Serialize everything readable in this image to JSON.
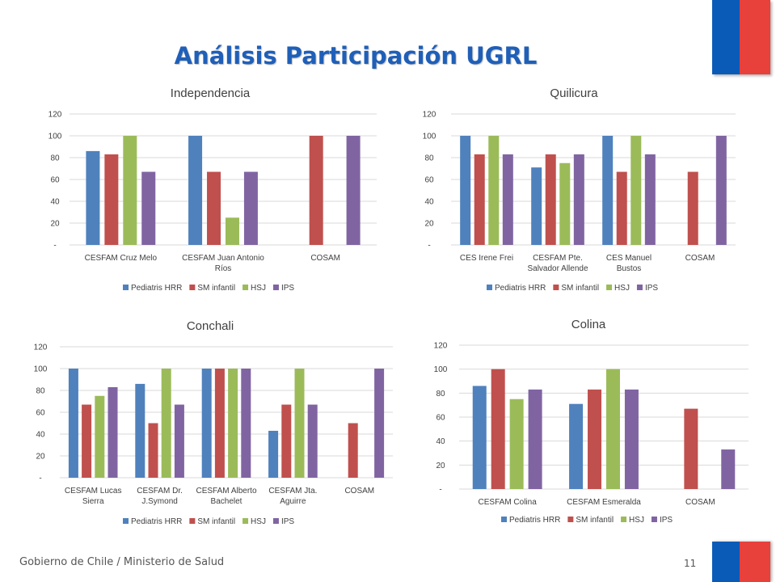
{
  "title": "Análisis Participación  UGRL",
  "footer": "Gobierno de Chile / Ministerio de Salud",
  "page_number": "11",
  "colors": {
    "title": "#1f5fb8",
    "flag_blue": "#0a5bb8",
    "flag_red": "#e8413c",
    "series": [
      "#4f81bd",
      "#c0504d",
      "#9bbb59",
      "#8064a2"
    ]
  },
  "chart_data": [
    {
      "type": "bar",
      "title": "Independencia",
      "categories": [
        [
          "CESFAM Cruz Melo"
        ],
        [
          "CESFAM Juan Antonio",
          "Ríos"
        ],
        [
          "COSAM"
        ]
      ],
      "series": [
        {
          "name": "Pediatris HRR",
          "values": [
            86,
            100,
            null
          ]
        },
        {
          "name": "SM infantil",
          "values": [
            83,
            67,
            100
          ]
        },
        {
          "name": "HSJ",
          "values": [
            100,
            25,
            null
          ]
        },
        {
          "name": "IPS",
          "values": [
            67,
            67,
            100
          ]
        }
      ],
      "ylim": [
        0,
        120
      ],
      "yticks": [
        "-",
        "20",
        "40",
        "60",
        "80",
        "100",
        "120"
      ],
      "grid": true,
      "legend": "bottom"
    },
    {
      "type": "bar",
      "title": "Quilicura",
      "categories": [
        [
          "CES Irene Frei"
        ],
        [
          "CESFAM Pte.",
          "Salvador Allende"
        ],
        [
          "CES Manuel",
          "Bustos"
        ],
        [
          "COSAM"
        ]
      ],
      "series": [
        {
          "name": "Pediatris HRR",
          "values": [
            100,
            71,
            100,
            null
          ]
        },
        {
          "name": "SM infantil",
          "values": [
            83,
            83,
            67,
            67
          ]
        },
        {
          "name": "HSJ",
          "values": [
            100,
            75,
            100,
            null
          ]
        },
        {
          "name": "IPS",
          "values": [
            83,
            83,
            83,
            100
          ]
        }
      ],
      "ylim": [
        0,
        120
      ],
      "yticks": [
        "-",
        "20",
        "40",
        "60",
        "80",
        "100",
        "120"
      ],
      "grid": true,
      "legend": "bottom"
    },
    {
      "type": "bar",
      "title": "Conchali",
      "categories": [
        [
          "CESFAM Lucas",
          "Sierra"
        ],
        [
          "CESFAM Dr.",
          "J.Symond"
        ],
        [
          "CESFAM  Alberto",
          "Bachelet"
        ],
        [
          "CESFAM Jta.",
          "Aguirre"
        ],
        [
          "COSAM"
        ]
      ],
      "series": [
        {
          "name": "Pediatris HRR",
          "values": [
            100,
            86,
            100,
            43,
            null
          ]
        },
        {
          "name": "SM infantil",
          "values": [
            67,
            50,
            100,
            67,
            50
          ]
        },
        {
          "name": "HSJ",
          "values": [
            75,
            100,
            100,
            100,
            null
          ]
        },
        {
          "name": "IPS",
          "values": [
            83,
            67,
            100,
            67,
            100
          ]
        }
      ],
      "ylim": [
        0,
        120
      ],
      "yticks": [
        "-",
        "20",
        "40",
        "60",
        "80",
        "100",
        "120"
      ],
      "grid": true,
      "legend": "bottom"
    },
    {
      "type": "bar",
      "title": "Colina",
      "categories": [
        [
          "CESFAM Colina"
        ],
        [
          "CESFAM Esmeralda"
        ],
        [
          "COSAM"
        ]
      ],
      "series": [
        {
          "name": "Pediatris HRR",
          "values": [
            86,
            71,
            null
          ]
        },
        {
          "name": "SM infantil",
          "values": [
            100,
            83,
            67
          ]
        },
        {
          "name": "HSJ",
          "values": [
            75,
            100,
            null
          ]
        },
        {
          "name": "IPS",
          "values": [
            83,
            83,
            33
          ]
        }
      ],
      "ylim": [
        0,
        120
      ],
      "yticks": [
        "-",
        "20",
        "40",
        "60",
        "80",
        "100",
        "120"
      ],
      "grid": true,
      "legend": "bottom"
    }
  ]
}
